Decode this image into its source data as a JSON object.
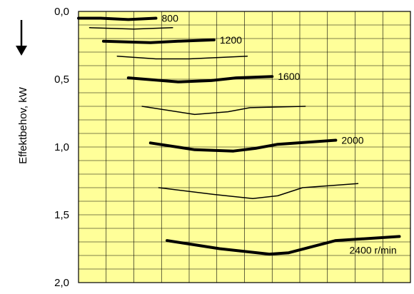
{
  "chart_data": {
    "type": "line",
    "ylabel": "Effektbehov, kW",
    "y_inverted": true,
    "ylim": [
      0.0,
      2.0
    ],
    "y_ticks": [
      0.0,
      0.5,
      1.0,
      1.5,
      2.0
    ],
    "y_tick_labels": [
      "0,0",
      "0,5",
      "1,0",
      "1,5",
      "2,0"
    ],
    "x_ticks": [],
    "grid": true,
    "arrow": "down",
    "background_color": "#FFFF99",
    "grid_color": "#000000",
    "series": [
      {
        "name": "800",
        "emphasis": "thick",
        "points": [
          [
            0.0,
            0.05
          ],
          [
            0.8,
            0.05
          ],
          [
            1.8,
            0.06
          ],
          [
            2.8,
            0.05
          ]
        ]
      },
      {
        "name": "",
        "emphasis": "thin",
        "points": [
          [
            0.4,
            0.12
          ],
          [
            2.0,
            0.13
          ],
          [
            3.4,
            0.12
          ]
        ]
      },
      {
        "name": "1200",
        "emphasis": "thick",
        "points": [
          [
            0.9,
            0.22
          ],
          [
            2.6,
            0.23
          ],
          [
            3.6,
            0.22
          ],
          [
            4.9,
            0.21
          ]
        ]
      },
      {
        "name": "",
        "emphasis": "thin",
        "points": [
          [
            1.4,
            0.33
          ],
          [
            2.8,
            0.35
          ],
          [
            4.0,
            0.35
          ],
          [
            6.1,
            0.33
          ]
        ]
      },
      {
        "name": "1600",
        "emphasis": "thick",
        "points": [
          [
            1.8,
            0.49
          ],
          [
            3.6,
            0.52
          ],
          [
            4.8,
            0.51
          ],
          [
            5.7,
            0.49
          ],
          [
            7.0,
            0.48
          ]
        ]
      },
      {
        "name": "",
        "emphasis": "thin",
        "points": [
          [
            2.3,
            0.7
          ],
          [
            4.2,
            0.76
          ],
          [
            5.4,
            0.74
          ],
          [
            6.2,
            0.71
          ],
          [
            8.2,
            0.7
          ]
        ]
      },
      {
        "name": "2000",
        "emphasis": "thick",
        "points": [
          [
            2.6,
            0.97
          ],
          [
            4.2,
            1.02
          ],
          [
            5.6,
            1.03
          ],
          [
            6.4,
            1.01
          ],
          [
            7.2,
            0.98
          ],
          [
            9.3,
            0.95
          ]
        ]
      },
      {
        "name": "",
        "emphasis": "thin",
        "points": [
          [
            2.9,
            1.3
          ],
          [
            4.9,
            1.35
          ],
          [
            6.3,
            1.38
          ],
          [
            7.2,
            1.36
          ],
          [
            8.1,
            1.3
          ],
          [
            10.1,
            1.27
          ]
        ]
      },
      {
        "name": "2400 r/min",
        "emphasis": "thick",
        "points": [
          [
            3.2,
            1.69
          ],
          [
            5.1,
            1.75
          ],
          [
            6.9,
            1.79
          ],
          [
            7.6,
            1.78
          ],
          [
            9.3,
            1.69
          ],
          [
            11.6,
            1.66
          ]
        ]
      }
    ]
  }
}
